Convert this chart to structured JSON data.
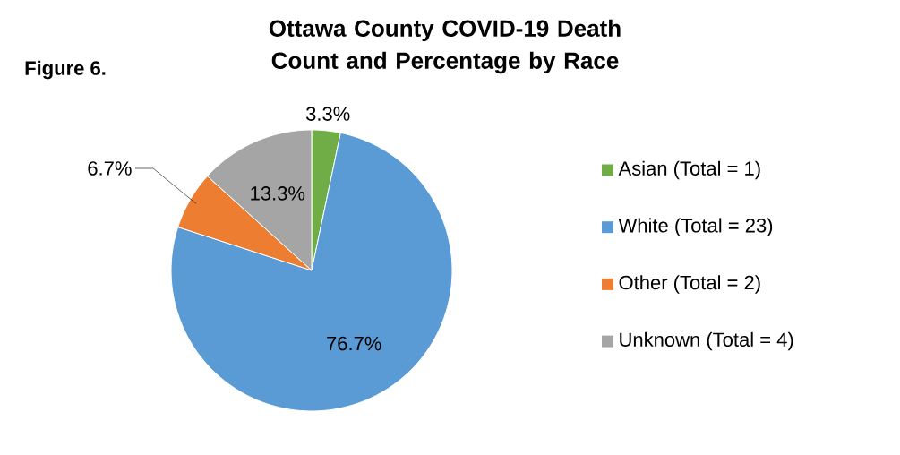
{
  "chart_data": {
    "type": "pie",
    "title": "Ottawa County COVID-19 Death Count and Percentage by Race",
    "categories": [
      "Asian (Total = 1)",
      "White (Total = 23)",
      "Other (Total = 2)",
      "Unknown (Total = 4)"
    ],
    "values": [
      3.3,
      76.7,
      6.7,
      13.3
    ],
    "value_labels": [
      "3.3%",
      "76.7%",
      "6.7%",
      "13.3%"
    ],
    "colors": [
      "#70ad47",
      "#5b9bd5",
      "#ed7d31",
      "#a5a5a5"
    ],
    "legend": "right",
    "annotations": [
      "Figure 6."
    ]
  }
}
